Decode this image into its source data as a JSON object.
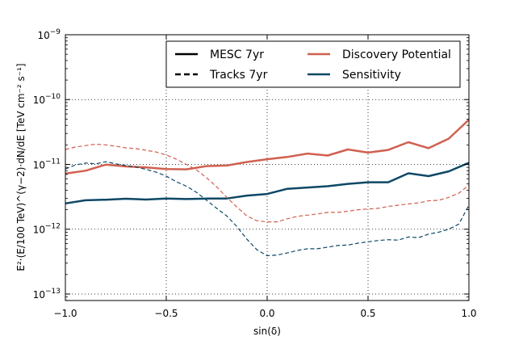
{
  "chart_data": {
    "type": "line",
    "xlabel": "sin(δ)",
    "ylabel": "E²·(E/100 TeV)^(γ−2)·dN/dE  [TeV cm⁻² s⁻¹]",
    "xlim": [
      -1.0,
      1.0
    ],
    "ylim_log10": [
      -13.1,
      -9.0
    ],
    "yscale": "log",
    "grid": true,
    "legend_position": "top-right",
    "x_ticks": [
      {
        "value": -1.0,
        "label": "−1.0"
      },
      {
        "value": -0.5,
        "label": "−0.5"
      },
      {
        "value": 0.0,
        "label": "0.0"
      },
      {
        "value": 0.5,
        "label": "0.5"
      },
      {
        "value": 1.0,
        "label": "1.0"
      }
    ],
    "y_ticks": [
      {
        "exp": -13,
        "base": "10",
        "sup": "−13"
      },
      {
        "exp": -12,
        "base": "10",
        "sup": "−12"
      },
      {
        "exp": -11,
        "base": "10",
        "sup": "−11"
      },
      {
        "exp": -10,
        "base": "10",
        "sup": "−10"
      },
      {
        "exp": -9,
        "base": "10",
        "sup": "−9"
      }
    ],
    "legend": {
      "style_entries": [
        {
          "label": "MESC 7yr",
          "dash": "solid"
        },
        {
          "label": "Tracks 7yr",
          "dash": "dashed"
        }
      ],
      "color_entries": [
        {
          "label": "Discovery Potential",
          "color": "#d0604f"
        },
        {
          "label": "Sensitivity",
          "color": "#0d4866"
        }
      ]
    },
    "series": [
      {
        "id": "mesc-discovery",
        "legend_style": "MESC 7yr",
        "legend_color": "Discovery Potential",
        "color": "#d0604f",
        "dash": "solid",
        "x": [
          -1.0,
          -0.9,
          -0.8,
          -0.7,
          -0.6,
          -0.5,
          -0.4,
          -0.3,
          -0.2,
          -0.1,
          0.0,
          0.1,
          0.2,
          0.3,
          0.4,
          0.5,
          0.6,
          0.7,
          0.8,
          0.9,
          1.0
        ],
        "y": [
          7.2e-12,
          8e-12,
          9.9e-12,
          9.3e-12,
          9e-12,
          8.5e-12,
          8.4e-12,
          9.4e-12,
          9.6e-12,
          1.09e-11,
          1.2e-11,
          1.3e-11,
          1.47e-11,
          1.37e-11,
          1.7e-11,
          1.52e-11,
          1.67e-11,
          2.2e-11,
          1.78e-11,
          2.5e-11,
          4.9e-11
        ]
      },
      {
        "id": "mesc-sensitivity",
        "legend_style": "MESC 7yr",
        "legend_color": "Sensitivity",
        "color": "#0d4866",
        "dash": "solid",
        "x": [
          -1.0,
          -0.9,
          -0.8,
          -0.7,
          -0.6,
          -0.5,
          -0.4,
          -0.3,
          -0.2,
          -0.1,
          0.0,
          0.1,
          0.2,
          0.3,
          0.4,
          0.5,
          0.6,
          0.7,
          0.8,
          0.9,
          1.0
        ],
        "y": [
          2.5e-12,
          2.8e-12,
          2.85e-12,
          2.95e-12,
          2.87e-12,
          2.98e-12,
          2.92e-12,
          2.97e-12,
          2.98e-12,
          3.3e-12,
          3.5e-12,
          4.2e-12,
          4.4e-12,
          4.6e-12,
          5e-12,
          5.3e-12,
          5.3e-12,
          7.3e-12,
          6.6e-12,
          7.8e-12,
          1.06e-11
        ]
      },
      {
        "id": "tracks-discovery",
        "legend_style": "Tracks 7yr",
        "legend_color": "Discovery Potential",
        "color": "#d0604f",
        "dash": "dashed",
        "x": [
          -1.0,
          -0.95,
          -0.9,
          -0.85,
          -0.8,
          -0.75,
          -0.7,
          -0.65,
          -0.6,
          -0.55,
          -0.5,
          -0.45,
          -0.4,
          -0.35,
          -0.3,
          -0.25,
          -0.2,
          -0.15,
          -0.1,
          -0.05,
          0.0,
          0.05,
          0.1,
          0.15,
          0.2,
          0.25,
          0.3,
          0.35,
          0.4,
          0.45,
          0.5,
          0.55,
          0.6,
          0.65,
          0.7,
          0.75,
          0.8,
          0.85,
          0.9,
          0.95,
          1.0
        ],
        "y": [
          1.7e-11,
          1.85e-11,
          1.95e-11,
          2.05e-11,
          2e-11,
          1.9e-11,
          1.8e-11,
          1.75e-11,
          1.65e-11,
          1.55e-11,
          1.4e-11,
          1.2e-11,
          1e-11,
          8.2e-12,
          6.2e-12,
          4.5e-12,
          3.1e-12,
          2.2e-12,
          1.6e-12,
          1.35e-12,
          1.3e-12,
          1.3e-12,
          1.45e-12,
          1.58e-12,
          1.65e-12,
          1.72e-12,
          1.82e-12,
          1.82e-12,
          1.9e-12,
          2e-12,
          2.05e-12,
          2.1e-12,
          2.25e-12,
          2.35e-12,
          2.45e-12,
          2.55e-12,
          2.75e-12,
          2.8e-12,
          3.1e-12,
          3.6e-12,
          4.8e-12
        ]
      },
      {
        "id": "tracks-sensitivity",
        "legend_style": "Tracks 7yr",
        "legend_color": "Sensitivity",
        "color": "#0d4866",
        "dash": "dashed",
        "x": [
          -1.0,
          -0.95,
          -0.9,
          -0.85,
          -0.8,
          -0.75,
          -0.7,
          -0.65,
          -0.6,
          -0.55,
          -0.5,
          -0.45,
          -0.4,
          -0.35,
          -0.3,
          -0.25,
          -0.2,
          -0.15,
          -0.1,
          -0.05,
          0.0,
          0.05,
          0.1,
          0.15,
          0.2,
          0.25,
          0.3,
          0.35,
          0.4,
          0.45,
          0.5,
          0.55,
          0.6,
          0.65,
          0.7,
          0.75,
          0.8,
          0.85,
          0.9,
          0.95,
          1.0
        ],
        "y": [
          8.5e-12,
          9.8e-12,
          1.05e-11,
          1.02e-11,
          1.1e-11,
          1.02e-11,
          9.6e-12,
          9.1e-12,
          8.4e-12,
          7.6e-12,
          6.6e-12,
          5.4e-12,
          4.6e-12,
          3.7e-12,
          2.8e-12,
          2.1e-12,
          1.6e-12,
          1.1e-12,
          7e-13,
          4.8e-13,
          3.9e-13,
          4e-13,
          4.3e-13,
          4.7e-13,
          5e-13,
          5e-13,
          5.3e-13,
          5.6e-13,
          5.7e-13,
          6.1e-13,
          6.4e-13,
          6.7e-13,
          6.9e-13,
          6.8e-13,
          7.6e-13,
          7.4e-13,
          8.4e-13,
          9e-13,
          1e-12,
          1.2e-12,
          2.35e-12
        ]
      }
    ]
  }
}
